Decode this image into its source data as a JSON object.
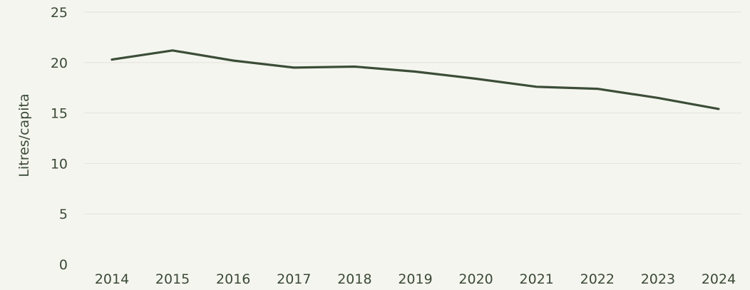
{
  "chart_data": {
    "type": "line",
    "title": "",
    "xlabel": "",
    "ylabel": "Litres/capita",
    "x": [
      "2014",
      "2015",
      "2016",
      "2017",
      "2018",
      "2019",
      "2020",
      "2021",
      "2022",
      "2023",
      "2024"
    ],
    "series": [
      {
        "values": [
          20.3,
          21.2,
          20.2,
          19.5,
          19.6,
          19.1,
          18.4,
          17.6,
          17.4,
          16.5,
          15.4
        ]
      }
    ],
    "ylim": [
      0,
      25
    ],
    "yticks": [
      "0",
      "5",
      "10",
      "15",
      "20",
      "25"
    ],
    "grid": "horizontal",
    "legend": "none",
    "colors": {
      "line": "#3b4d37",
      "grid": "#e4e4dc",
      "background": "#f5f5f0",
      "text": "#3a4a36"
    }
  }
}
